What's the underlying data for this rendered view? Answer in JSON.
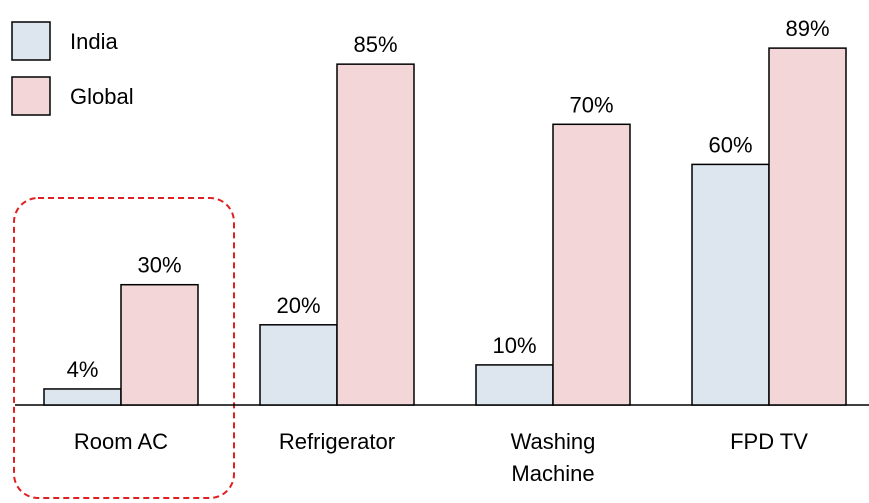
{
  "chart_data": {
    "type": "bar",
    "categories": [
      "Room AC",
      "Refrigerator",
      "Washing Machine",
      "FPD TV"
    ],
    "series": [
      {
        "name": "India",
        "color": "#dde6ef",
        "values": [
          4,
          20,
          10,
          60
        ],
        "value_labels": [
          "4%",
          "20%",
          "10%",
          "60%"
        ]
      },
      {
        "name": "Global",
        "color": "#f2d6d8",
        "values": [
          30,
          85,
          70,
          89
        ],
        "value_labels": [
          "30%",
          "85%",
          "70%",
          "89%"
        ]
      }
    ],
    "ylim": [
      0,
      100
    ]
  }
}
